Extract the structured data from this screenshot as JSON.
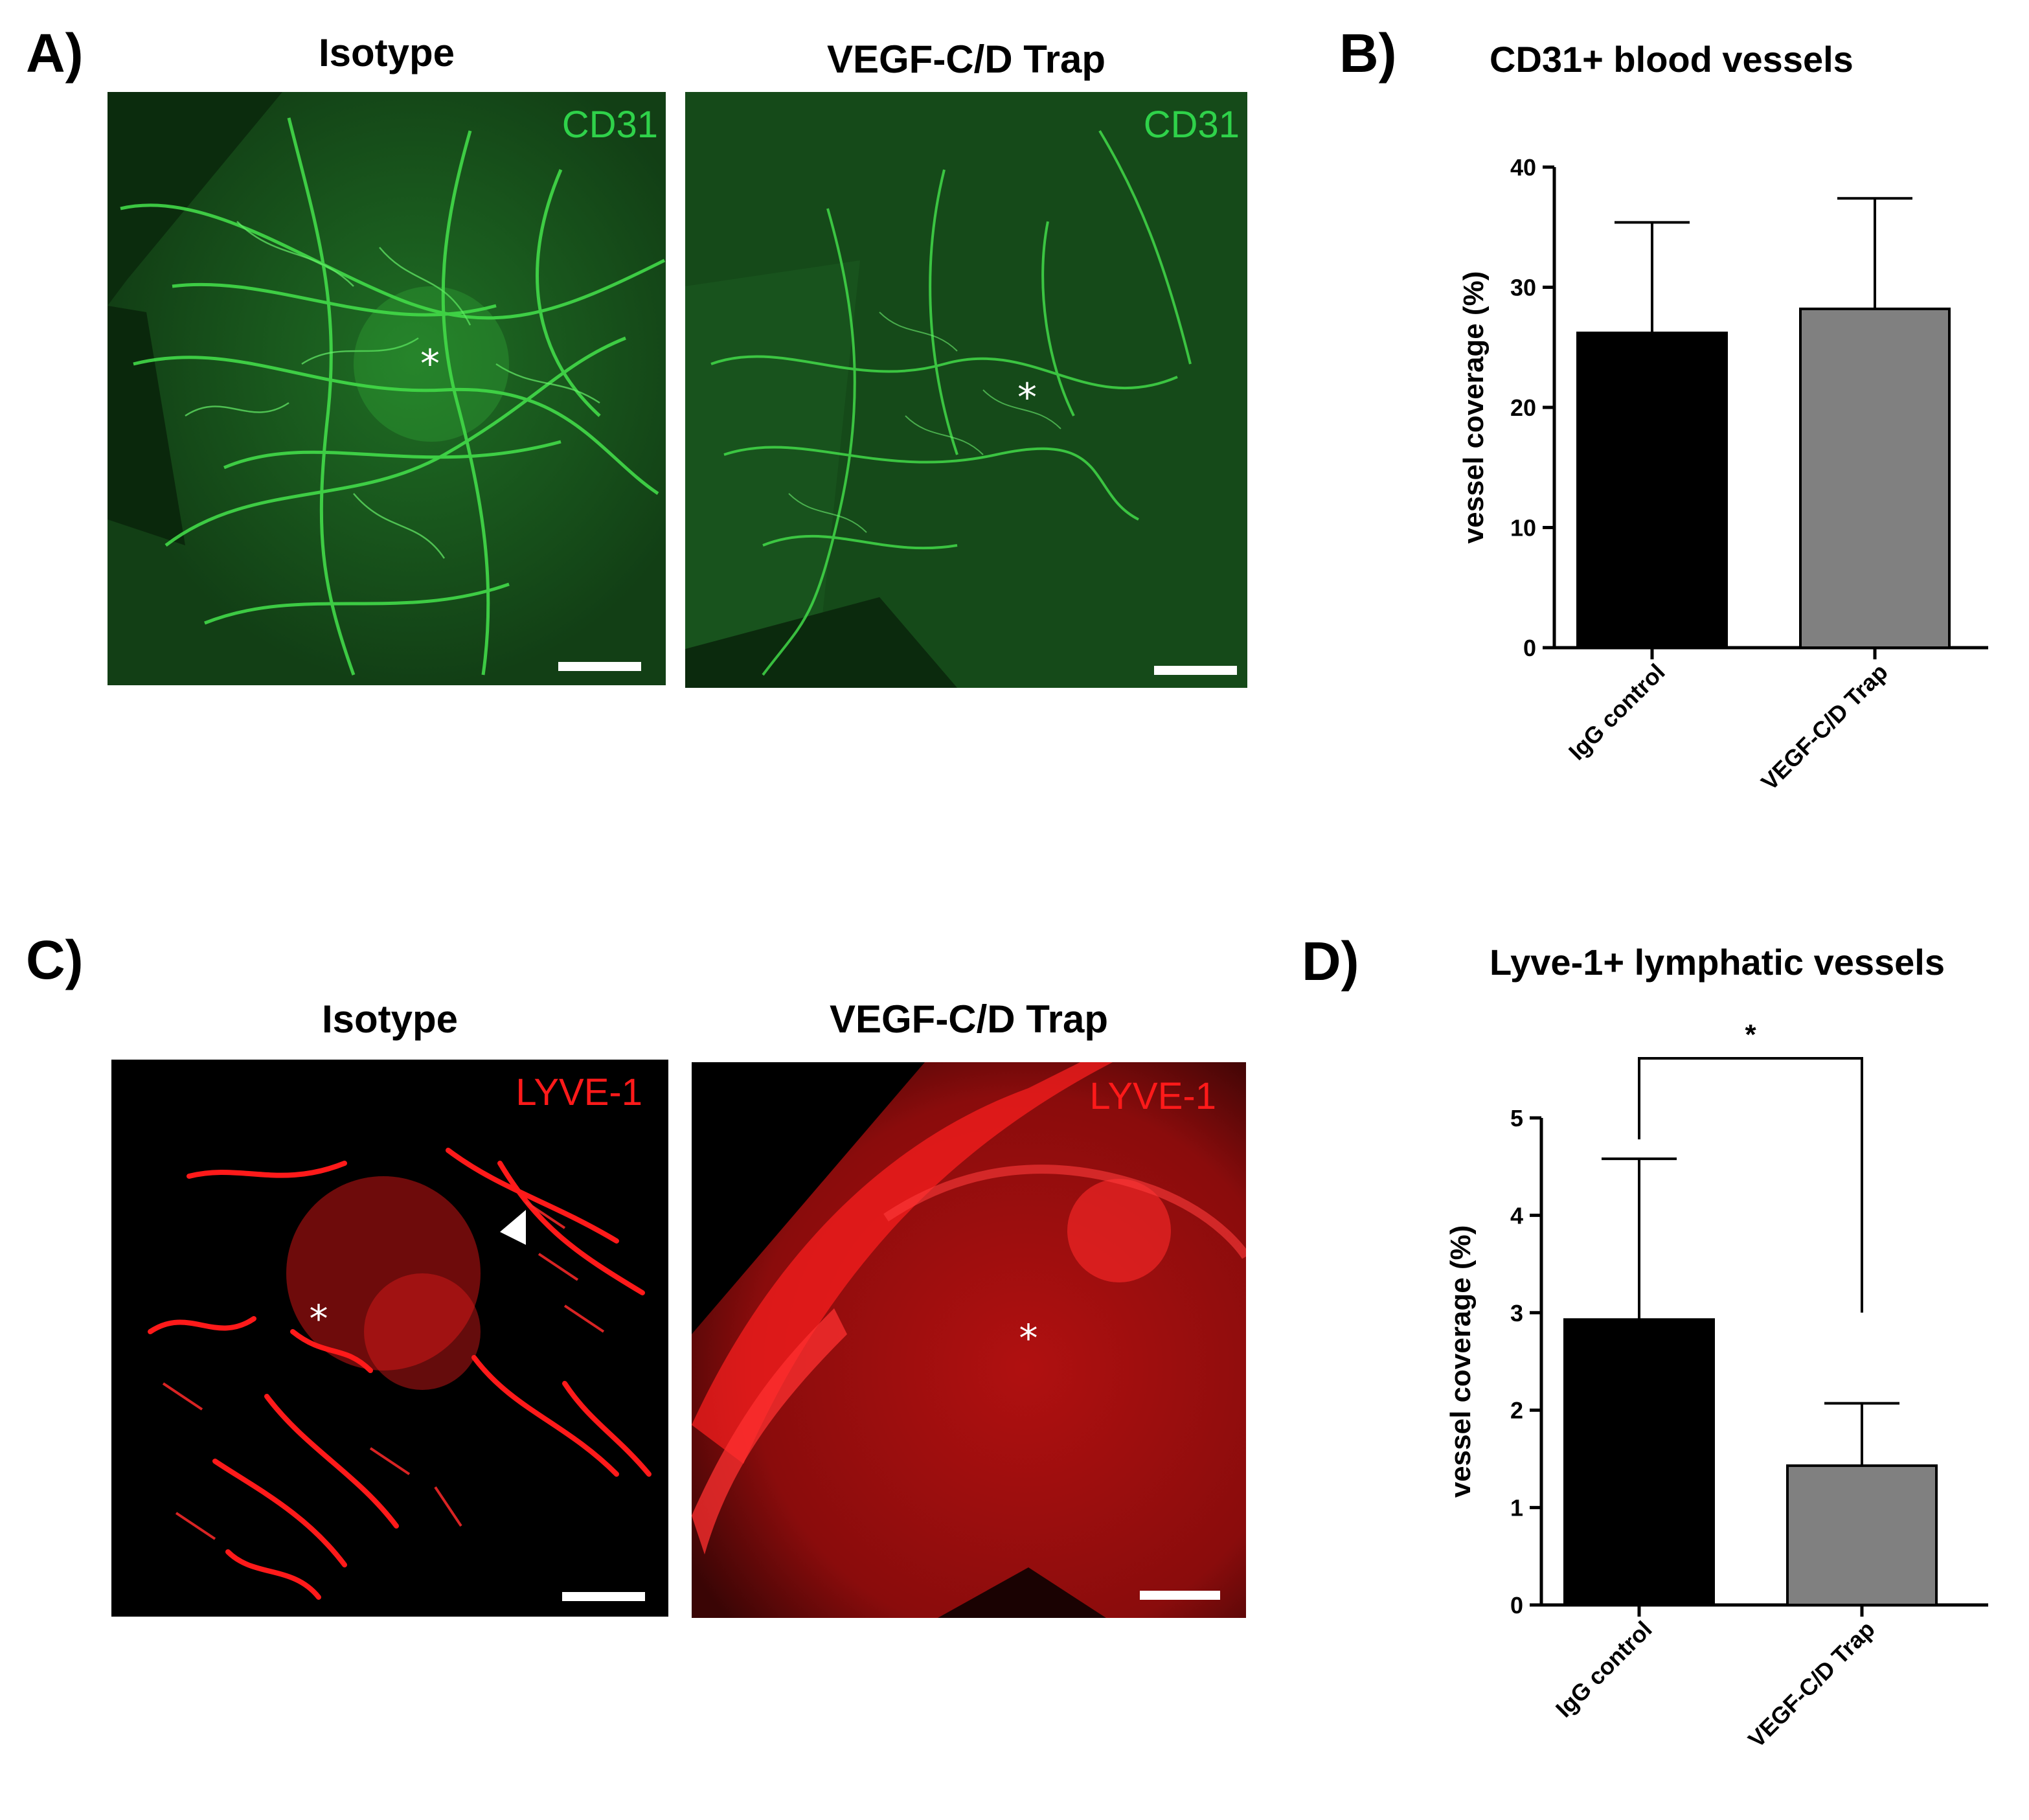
{
  "panels": {
    "A": {
      "letter": "A)",
      "left_caption": "Isotype",
      "right_caption": "VEGF-C/D Trap",
      "stain_label": "CD31",
      "stain_color": "#2fd24a",
      "marker": "*"
    },
    "B": {
      "letter": "B)"
    },
    "C": {
      "letter": "C)",
      "left_caption": "Isotype",
      "right_caption": "VEGF-C/D Trap",
      "stain_label": "LYVE-1",
      "stain_color": "#ff1a1a",
      "marker": "*"
    },
    "D": {
      "letter": "D)"
    }
  },
  "chart_data": [
    {
      "id": "B",
      "type": "bar",
      "title": "CD31+ blood vessels",
      "ylabel": "vessel coverage (%)",
      "xlabel": "",
      "categories": [
        "IgG control",
        "VEGF-C/D Trap"
      ],
      "values": [
        26.2,
        28.2
      ],
      "errors": [
        9.2,
        9.2
      ],
      "colors": [
        "#000000",
        "#808080"
      ],
      "ylim": [
        0,
        40
      ],
      "yticks": [
        0,
        10,
        20,
        30,
        40
      ],
      "grid": false,
      "significance": null
    },
    {
      "id": "D",
      "type": "bar",
      "title": "Lyve-1+ lymphatic vessels",
      "ylabel": "vessel coverage (%)",
      "xlabel": "",
      "categories": [
        "IgG control",
        "VEGF-C/D Trap"
      ],
      "values": [
        2.93,
        1.43
      ],
      "errors": [
        1.65,
        0.64
      ],
      "colors": [
        "#000000",
        "#808080"
      ],
      "ylim": [
        0,
        5
      ],
      "yticks": [
        0,
        1,
        2,
        3,
        4,
        5
      ],
      "grid": false,
      "significance": "*"
    }
  ]
}
